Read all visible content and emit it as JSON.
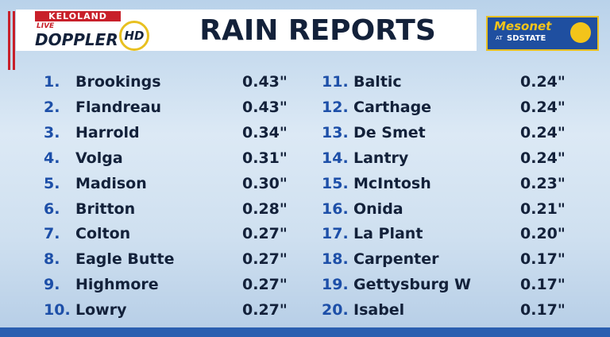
{
  "header": {
    "station": "KELOLAND",
    "live": "LIVE",
    "doppler": "DOPPLER",
    "hd": "HD",
    "title": "RAIN REPORTS",
    "mesonet": "Mesonet",
    "at": "AT",
    "sdstate": "SDSTATE"
  },
  "reports": [
    {
      "rank": "1.",
      "place": "Brookings",
      "amount": "0.43\""
    },
    {
      "rank": "2.",
      "place": "Flandreau",
      "amount": "0.43\""
    },
    {
      "rank": "3.",
      "place": "Harrold",
      "amount": "0.34\""
    },
    {
      "rank": "4.",
      "place": "Volga",
      "amount": "0.31\""
    },
    {
      "rank": "5.",
      "place": "Madison",
      "amount": "0.30\""
    },
    {
      "rank": "6.",
      "place": "Britton",
      "amount": "0.28\""
    },
    {
      "rank": "7.",
      "place": "Colton",
      "amount": "0.27\""
    },
    {
      "rank": "8.",
      "place": "Eagle Butte",
      "amount": "0.27\""
    },
    {
      "rank": "9.",
      "place": "Highmore",
      "amount": "0.27\""
    },
    {
      "rank": "10.",
      "place": "Lowry",
      "amount": "0.27\""
    },
    {
      "rank": "11.",
      "place": "Baltic",
      "amount": "0.24\""
    },
    {
      "rank": "12.",
      "place": "Carthage",
      "amount": "0.24\""
    },
    {
      "rank": "13.",
      "place": "De Smet",
      "amount": "0.24\""
    },
    {
      "rank": "14.",
      "place": "Lantry",
      "amount": "0.24\""
    },
    {
      "rank": "15.",
      "place": "McIntosh",
      "amount": "0.23\""
    },
    {
      "rank": "16.",
      "place": "Onida",
      "amount": "0.21\""
    },
    {
      "rank": "17.",
      "place": "La Plant",
      "amount": "0.20\""
    },
    {
      "rank": "18.",
      "place": "Carpenter",
      "amount": "0.17\""
    },
    {
      "rank": "19.",
      "place": "Gettysburg W",
      "amount": "0.17\""
    },
    {
      "rank": "20.",
      "place": "Isabel",
      "amount": "0.17\""
    }
  ]
}
